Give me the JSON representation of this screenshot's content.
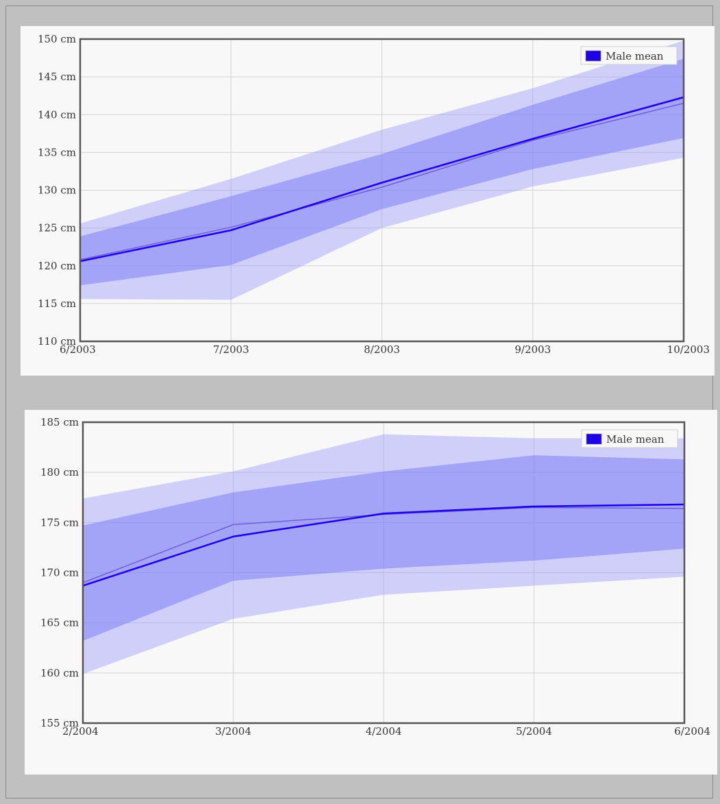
{
  "chart_data": [
    {
      "type": "area",
      "y_unit": "cm",
      "ylim": [
        110,
        150
      ],
      "y_ticks": [
        110,
        115,
        120,
        125,
        130,
        135,
        140,
        145,
        150
      ],
      "categories": [
        "6/2003",
        "7/2003",
        "8/2003",
        "9/2003",
        "10/2003"
      ],
      "grid": true,
      "legend": {
        "position": "top-right",
        "label": "Male mean",
        "color": "#2000e8"
      },
      "series": [
        {
          "name": "Male mean",
          "values": [
            120.6,
            124.7,
            131.0,
            136.8,
            142.3
          ]
        }
      ],
      "secondary_line": [
        120.8,
        125.1,
        130.4,
        136.6,
        141.5
      ],
      "bands": {
        "outer_upper": [
          125.6,
          131.5,
          138.0,
          143.5,
          149.8
        ],
        "outer_lower": [
          115.6,
          115.5,
          125.0,
          130.5,
          134.3
        ],
        "inner_upper": [
          123.9,
          129.2,
          134.8,
          141.3,
          147.4
        ],
        "inner_lower": [
          117.4,
          120.1,
          127.5,
          132.8,
          136.9
        ]
      }
    },
    {
      "type": "area",
      "y_unit": "cm",
      "ylim": [
        155,
        185
      ],
      "y_ticks": [
        155,
        160,
        165,
        170,
        175,
        180,
        185
      ],
      "categories": [
        "2/2004",
        "3/2004",
        "4/2004",
        "5/2004",
        "6/2004"
      ],
      "grid": true,
      "legend": {
        "position": "top-right",
        "label": "Male mean",
        "color": "#2000e8"
      },
      "series": [
        {
          "name": "Male mean",
          "values": [
            168.7,
            173.6,
            175.9,
            176.6,
            176.8
          ]
        }
      ],
      "secondary_line": [
        169.0,
        174.8,
        175.8,
        176.5,
        176.4
      ],
      "bands": {
        "outer_upper": [
          177.4,
          180.1,
          183.8,
          183.4,
          183.4
        ],
        "outer_lower": [
          159.9,
          165.4,
          167.8,
          168.7,
          169.6
        ],
        "inner_upper": [
          174.7,
          178.0,
          180.1,
          181.7,
          181.3
        ],
        "inner_lower": [
          163.2,
          169.2,
          170.4,
          171.2,
          172.4
        ]
      }
    }
  ]
}
